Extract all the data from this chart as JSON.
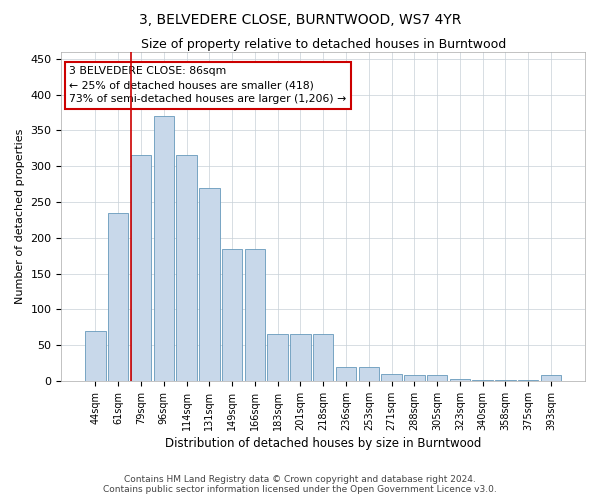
{
  "title": "3, BELVEDERE CLOSE, BURNTWOOD, WS7 4YR",
  "subtitle": "Size of property relative to detached houses in Burntwood",
  "xlabel": "Distribution of detached houses by size in Burntwood",
  "ylabel": "Number of detached properties",
  "categories": [
    "44sqm",
    "61sqm",
    "79sqm",
    "96sqm",
    "114sqm",
    "131sqm",
    "149sqm",
    "166sqm",
    "183sqm",
    "201sqm",
    "218sqm",
    "236sqm",
    "253sqm",
    "271sqm",
    "288sqm",
    "305sqm",
    "323sqm",
    "340sqm",
    "358sqm",
    "375sqm",
    "393sqm"
  ],
  "values": [
    70,
    235,
    315,
    370,
    315,
    270,
    185,
    185,
    65,
    65,
    65,
    20,
    20,
    10,
    8,
    8,
    3,
    1,
    1,
    1,
    8
  ],
  "bar_color": "#c8d8ea",
  "bar_edge_color": "#6699bb",
  "vline_pos": 2.0,
  "vline_color": "#cc0000",
  "annotation_text": "3 BELVEDERE CLOSE: 86sqm\n← 25% of detached houses are smaller (418)\n73% of semi-detached houses are larger (1,206) →",
  "annotation_box_color": "#ffffff",
  "annotation_box_edge": "#cc0000",
  "ylim": [
    0,
    460
  ],
  "yticks": [
    0,
    50,
    100,
    150,
    200,
    250,
    300,
    350,
    400,
    450
  ],
  "footer1": "Contains HM Land Registry data © Crown copyright and database right 2024.",
  "footer2": "Contains public sector information licensed under the Open Government Licence v3.0.",
  "bg_color": "#ffffff",
  "grid_color": "#c8d0d8",
  "title_fontsize": 10,
  "subtitle_fontsize": 9
}
